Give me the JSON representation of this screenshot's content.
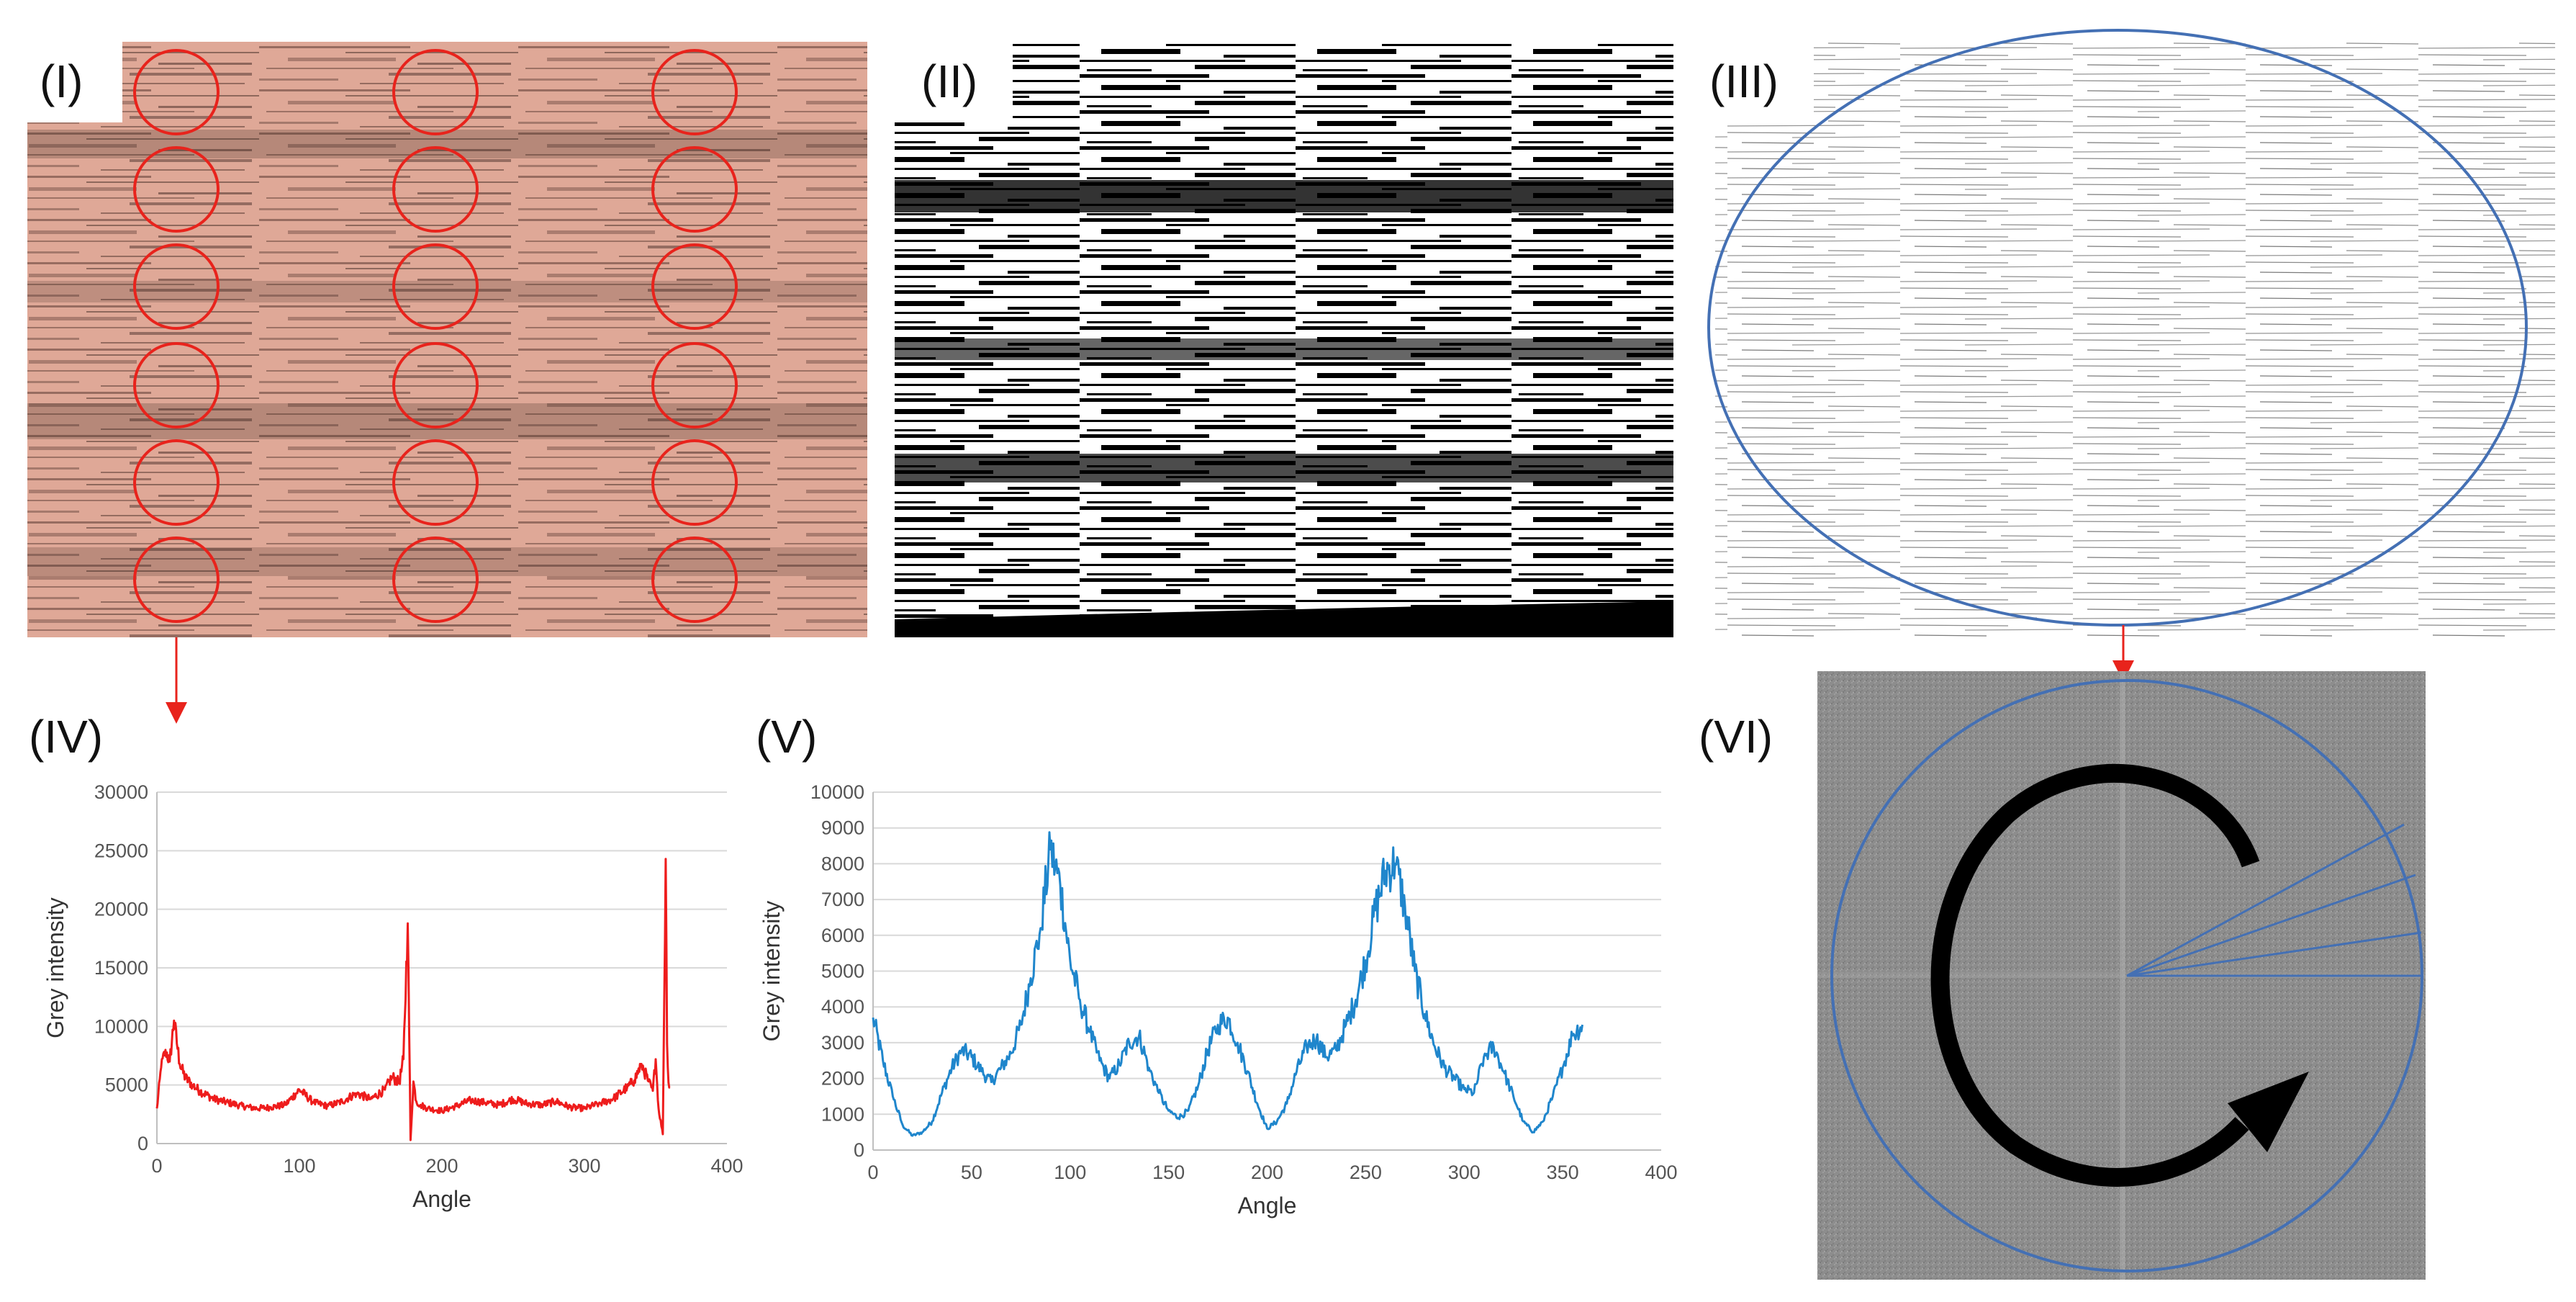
{
  "figure": {
    "panels": {
      "I": {
        "label": "(I)"
      },
      "II": {
        "label": "(II)"
      },
      "III": {
        "label": "(III)"
      },
      "IV": {
        "label": "(IV)"
      },
      "V": {
        "label": "(V)"
      },
      "VI": {
        "label": "(VI)"
      }
    },
    "colors": {
      "circle_red": "#e8231c",
      "ellipse_blue": "#4470b4",
      "micro_base": "#e3ad9a",
      "chart_red": "#ee1c1c",
      "chart_blue": "#1f86cc",
      "fft_grey": "#8a8a8a"
    },
    "icons": {
      "arrow_I_to_IV": "down-arrow-icon",
      "arrow_III_to_VI": "down-arrow-icon",
      "rotation_arrow": "rotation-arrow-icon"
    }
  },
  "chart_data": [
    {
      "type": "line",
      "panel": "(IV)",
      "title": "",
      "xlabel": "Angle",
      "ylabel": "Grey intensity",
      "xlim": [
        0,
        400
      ],
      "ylim": [
        0,
        30000
      ],
      "xticks": [
        "0",
        "100",
        "200",
        "300",
        "400"
      ],
      "yticks": [
        "0",
        "5000",
        "10000",
        "15000",
        "20000",
        "25000",
        "30000"
      ],
      "series": [
        {
          "name": "Grey intensity",
          "x": [
            0,
            3,
            6,
            9,
            12,
            16,
            20,
            25,
            30,
            40,
            50,
            60,
            70,
            80,
            90,
            100,
            110,
            120,
            130,
            140,
            150,
            160,
            165,
            170,
            173,
            176,
            178,
            180,
            182,
            185,
            190,
            200,
            210,
            220,
            230,
            240,
            250,
            260,
            270,
            280,
            290,
            300,
            310,
            320,
            330,
            335,
            340,
            345,
            348,
            350,
            352,
            355,
            357,
            358,
            359,
            360
          ],
          "values": [
            3000,
            6500,
            8000,
            7000,
            10500,
            6800,
            5600,
            5000,
            4500,
            3800,
            3500,
            3200,
            3000,
            3100,
            3300,
            4600,
            3500,
            3200,
            3600,
            4300,
            3800,
            4600,
            5700,
            5200,
            7200,
            18800,
            300,
            5300,
            3600,
            3300,
            3000,
            2800,
            3200,
            3700,
            3500,
            3300,
            3800,
            3400,
            3300,
            3600,
            3100,
            3000,
            3400,
            3800,
            4800,
            5400,
            6800,
            5300,
            4500,
            7200,
            3000,
            800,
            24300,
            8500,
            5200,
            4800
          ]
        }
      ]
    },
    {
      "type": "line",
      "panel": "(V)",
      "title": "",
      "xlabel": "Angle",
      "ylabel": "Grey intensity",
      "xlim": [
        0,
        400
      ],
      "ylim": [
        0,
        10000
      ],
      "xticks": [
        "0",
        "50",
        "100",
        "150",
        "200",
        "250",
        "300",
        "350",
        "400"
      ],
      "yticks": [
        "0",
        "1000",
        "2000",
        "3000",
        "4000",
        "5000",
        "6000",
        "7000",
        "8000",
        "9000",
        "10000"
      ],
      "series": [
        {
          "name": "Grey intensity",
          "x": [
            0,
            5,
            10,
            15,
            20,
            25,
            30,
            35,
            40,
            45,
            50,
            55,
            60,
            65,
            70,
            75,
            80,
            85,
            90,
            95,
            100,
            105,
            110,
            115,
            120,
            125,
            130,
            135,
            140,
            145,
            150,
            155,
            160,
            165,
            170,
            175,
            180,
            185,
            190,
            195,
            200,
            205,
            210,
            215,
            220,
            225,
            230,
            235,
            240,
            245,
            250,
            255,
            260,
            265,
            270,
            275,
            280,
            285,
            290,
            295,
            300,
            305,
            310,
            315,
            320,
            325,
            330,
            335,
            340,
            345,
            350,
            355,
            360
          ],
          "values": [
            3700,
            2500,
            1500,
            700,
            400,
            500,
            800,
            1600,
            2300,
            2800,
            2600,
            2200,
            1900,
            2300,
            2700,
            3500,
            4800,
            6200,
            8400,
            7400,
            5300,
            4200,
            3300,
            2500,
            2000,
            2400,
            3000,
            3200,
            2300,
            1600,
            1100,
            900,
            1100,
            1800,
            2800,
            3500,
            3700,
            3000,
            2200,
            1300,
            600,
            800,
            1300,
            2200,
            2900,
            3100,
            2600,
            2800,
            3500,
            4200,
            5300,
            6700,
            7800,
            8000,
            6800,
            5000,
            3800,
            2900,
            2300,
            2000,
            1700,
            1600,
            2600,
            2900,
            2200,
            1500,
            800,
            500,
            800,
            1500,
            2300,
            3200,
            3500
          ]
        }
      ]
    }
  ]
}
